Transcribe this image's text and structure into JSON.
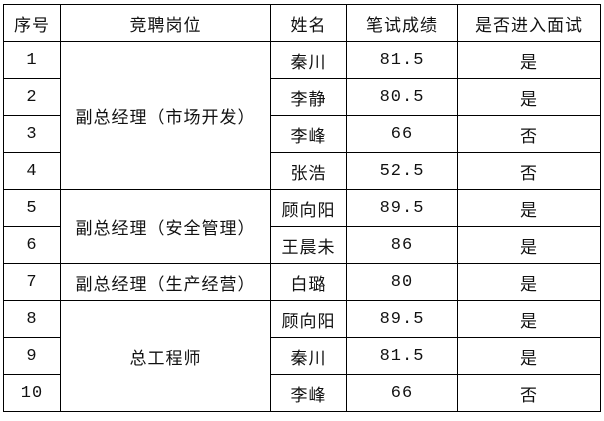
{
  "headers": [
    "序号",
    "竞聘岗位",
    "姓名",
    "笔试成绩",
    "是否进入面试"
  ],
  "positions": [
    "副总经理（市场开发）",
    "副总经理（安全管理）",
    "副总经理（生产经营）",
    "总工程师"
  ],
  "rows": [
    {
      "no": "1",
      "name": "秦川",
      "score": "81.5",
      "interview": "是"
    },
    {
      "no": "2",
      "name": "李静",
      "score": "80.5",
      "interview": "是"
    },
    {
      "no": "3",
      "name": "李峰",
      "score": "66",
      "interview": "否"
    },
    {
      "no": "4",
      "name": "张浩",
      "score": "52.5",
      "interview": "否"
    },
    {
      "no": "5",
      "name": "顾向阳",
      "score": "89.5",
      "interview": "是"
    },
    {
      "no": "6",
      "name": "王晨未",
      "score": "86",
      "interview": "是"
    },
    {
      "no": "7",
      "name": "白璐",
      "score": "80",
      "interview": "是"
    },
    {
      "no": "8",
      "name": "顾向阳",
      "score": "89.5",
      "interview": "是"
    },
    {
      "no": "9",
      "name": "秦川",
      "score": "81.5",
      "interview": "是"
    },
    {
      "no": "10",
      "name": "李峰",
      "score": "66",
      "interview": "否"
    }
  ]
}
